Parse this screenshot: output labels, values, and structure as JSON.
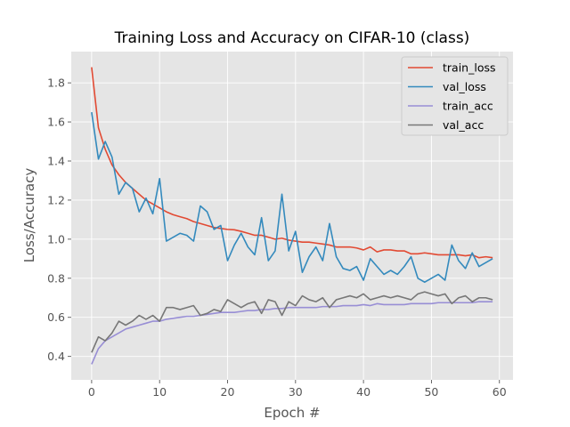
{
  "chart_data": {
    "type": "line",
    "title": "Training Loss and Accuracy on CIFAR-10 (class)",
    "xlabel": "Epoch #",
    "ylabel": "Loss/Accuracy",
    "xlim": [
      -3,
      62
    ],
    "ylim": [
      0.28,
      1.96
    ],
    "xticks": [
      0,
      10,
      20,
      30,
      40,
      50,
      60
    ],
    "yticks": [
      0.4,
      0.6,
      0.8,
      1.0,
      1.2,
      1.4,
      1.6,
      1.8
    ],
    "ytick_labels": [
      "0.4",
      "0.6",
      "0.8",
      "1.0",
      "1.2",
      "1.4",
      "1.6",
      "1.8"
    ],
    "grid": true,
    "legend_position": "top-right",
    "series": [
      {
        "name": "train_loss",
        "color": "#e24a33",
        "x": [
          0,
          1,
          2,
          3,
          4,
          5,
          6,
          7,
          8,
          9,
          10,
          11,
          12,
          13,
          14,
          15,
          16,
          17,
          18,
          19,
          20,
          21,
          22,
          23,
          24,
          25,
          26,
          27,
          28,
          29,
          30,
          31,
          32,
          33,
          34,
          35,
          36,
          37,
          38,
          39,
          40,
          41,
          42,
          43,
          44,
          45,
          46,
          47,
          48,
          49,
          50,
          51,
          52,
          53,
          54,
          55,
          56,
          57,
          58,
          59
        ],
        "values": [
          1.88,
          1.57,
          1.46,
          1.38,
          1.33,
          1.29,
          1.26,
          1.23,
          1.2,
          1.18,
          1.16,
          1.14,
          1.125,
          1.115,
          1.105,
          1.09,
          1.08,
          1.07,
          1.06,
          1.055,
          1.05,
          1.048,
          1.04,
          1.03,
          1.02,
          1.02,
          1.01,
          1.0,
          1.005,
          0.995,
          0.99,
          0.985,
          0.985,
          0.98,
          0.975,
          0.97,
          0.96,
          0.96,
          0.96,
          0.955,
          0.945,
          0.96,
          0.935,
          0.945,
          0.945,
          0.94,
          0.94,
          0.925,
          0.925,
          0.93,
          0.925,
          0.92,
          0.92,
          0.92,
          0.92,
          0.915,
          0.92,
          0.905,
          0.91,
          0.905
        ]
      },
      {
        "name": "val_loss",
        "color": "#348abd",
        "x": [
          0,
          1,
          2,
          3,
          4,
          5,
          6,
          7,
          8,
          9,
          10,
          11,
          12,
          13,
          14,
          15,
          16,
          17,
          18,
          19,
          20,
          21,
          22,
          23,
          24,
          25,
          26,
          27,
          28,
          29,
          30,
          31,
          32,
          33,
          34,
          35,
          36,
          37,
          38,
          39,
          40,
          41,
          42,
          43,
          44,
          45,
          46,
          47,
          48,
          49,
          50,
          51,
          52,
          53,
          54,
          55,
          56,
          57,
          58,
          59
        ],
        "values": [
          1.65,
          1.41,
          1.5,
          1.42,
          1.23,
          1.29,
          1.26,
          1.14,
          1.21,
          1.13,
          1.31,
          0.99,
          1.01,
          1.03,
          1.02,
          0.99,
          1.17,
          1.14,
          1.05,
          1.07,
          0.89,
          0.97,
          1.03,
          0.96,
          0.92,
          1.11,
          0.89,
          0.94,
          1.23,
          0.94,
          1.04,
          0.83,
          0.91,
          0.96,
          0.89,
          1.08,
          0.91,
          0.85,
          0.84,
          0.86,
          0.79,
          0.9,
          0.86,
          0.82,
          0.84,
          0.82,
          0.86,
          0.91,
          0.8,
          0.78,
          0.8,
          0.82,
          0.79,
          0.97,
          0.89,
          0.85,
          0.93,
          0.86,
          0.88,
          0.9
        ]
      },
      {
        "name": "train_acc",
        "color": "#988ed5",
        "x": [
          0,
          1,
          2,
          3,
          4,
          5,
          6,
          7,
          8,
          9,
          10,
          11,
          12,
          13,
          14,
          15,
          16,
          17,
          18,
          19,
          20,
          21,
          22,
          23,
          24,
          25,
          26,
          27,
          28,
          29,
          30,
          31,
          32,
          33,
          34,
          35,
          36,
          37,
          38,
          39,
          40,
          41,
          42,
          43,
          44,
          45,
          46,
          47,
          48,
          49,
          50,
          51,
          52,
          53,
          54,
          55,
          56,
          57,
          58,
          59
        ],
        "values": [
          0.36,
          0.44,
          0.48,
          0.5,
          0.52,
          0.54,
          0.55,
          0.56,
          0.57,
          0.58,
          0.58,
          0.59,
          0.595,
          0.6,
          0.605,
          0.605,
          0.61,
          0.615,
          0.62,
          0.625,
          0.625,
          0.625,
          0.63,
          0.635,
          0.635,
          0.64,
          0.64,
          0.645,
          0.645,
          0.65,
          0.65,
          0.65,
          0.65,
          0.65,
          0.655,
          0.655,
          0.655,
          0.66,
          0.66,
          0.66,
          0.665,
          0.66,
          0.67,
          0.665,
          0.665,
          0.665,
          0.665,
          0.67,
          0.67,
          0.67,
          0.67,
          0.675,
          0.675,
          0.675,
          0.675,
          0.675,
          0.675,
          0.68,
          0.68,
          0.68
        ]
      },
      {
        "name": "val_acc",
        "color": "#777777",
        "x": [
          0,
          1,
          2,
          3,
          4,
          5,
          6,
          7,
          8,
          9,
          10,
          11,
          12,
          13,
          14,
          15,
          16,
          17,
          18,
          19,
          20,
          21,
          22,
          23,
          24,
          25,
          26,
          27,
          28,
          29,
          30,
          31,
          32,
          33,
          34,
          35,
          36,
          37,
          38,
          39,
          40,
          41,
          42,
          43,
          44,
          45,
          46,
          47,
          48,
          49,
          50,
          51,
          52,
          53,
          54,
          55,
          56,
          57,
          58,
          59
        ],
        "values": [
          0.42,
          0.5,
          0.48,
          0.52,
          0.58,
          0.56,
          0.58,
          0.61,
          0.59,
          0.61,
          0.58,
          0.65,
          0.65,
          0.64,
          0.65,
          0.66,
          0.61,
          0.62,
          0.64,
          0.63,
          0.69,
          0.67,
          0.65,
          0.67,
          0.68,
          0.62,
          0.69,
          0.68,
          0.61,
          0.68,
          0.66,
          0.71,
          0.69,
          0.68,
          0.7,
          0.65,
          0.69,
          0.7,
          0.71,
          0.7,
          0.72,
          0.69,
          0.7,
          0.71,
          0.7,
          0.71,
          0.7,
          0.69,
          0.72,
          0.73,
          0.72,
          0.71,
          0.72,
          0.67,
          0.7,
          0.71,
          0.68,
          0.7,
          0.7,
          0.69
        ]
      }
    ]
  }
}
